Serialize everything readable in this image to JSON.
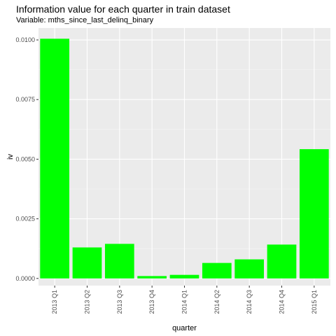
{
  "chart_data": {
    "type": "bar",
    "title": "Information value for each quarter in train dataset",
    "subtitle": "Variable: mths_since_last_delinq_binary",
    "xlabel": "quarter",
    "ylabel": "iv",
    "categories": [
      "2013 Q1",
      "2013 Q2",
      "2013 Q3",
      "2013 Q4",
      "2014 Q1",
      "2014 Q2",
      "2014 Q3",
      "2014 Q4",
      "2015 Q1"
    ],
    "values": [
      0.01005,
      0.0013,
      0.00145,
      0.0001,
      0.00015,
      0.00065,
      0.0008,
      0.00142,
      0.00542
    ],
    "yticks": [
      "0.0000",
      "0.0025",
      "0.0050",
      "0.0075",
      "0.0100"
    ],
    "ytick_values": [
      0,
      0.0025,
      0.005,
      0.0075,
      0.01
    ],
    "ylim": [
      -0.0003,
      0.0105
    ],
    "bar_color": "#00ff00",
    "panel_color": "#ebebeb",
    "grid": true,
    "legend": "none"
  }
}
